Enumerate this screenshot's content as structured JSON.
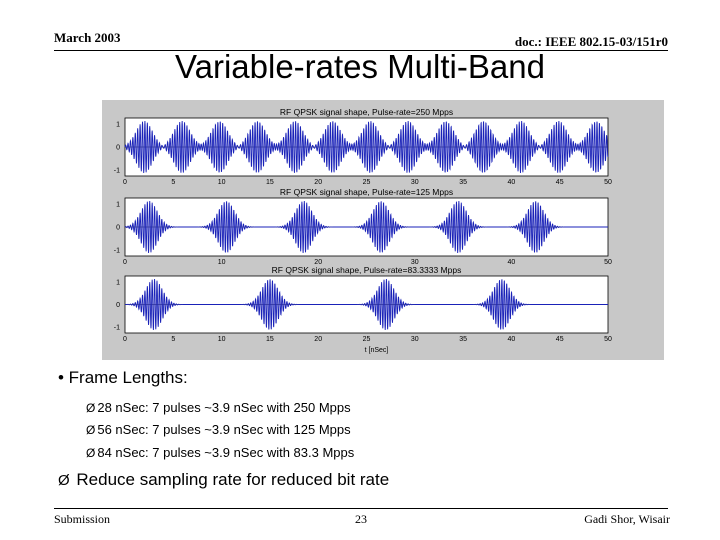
{
  "header": {
    "date": "March 2003",
    "doc_id": "doc.: IEEE 802.15-03/151r0"
  },
  "title": "Variable-rates Multi-Band",
  "figure": {
    "plots": [
      {
        "title": "RF QPSK signal shape, Pulse-rate=250 Mpps",
        "y_ticks": [
          "1",
          "0",
          "-1"
        ],
        "x_ticks": [
          "0",
          "5",
          "10",
          "15",
          "20",
          "25",
          "30",
          "35",
          "40",
          "45",
          "50"
        ],
        "pulse_centers_nsec": [
          2.0,
          5.9,
          9.8,
          13.7,
          17.6,
          21.5,
          25.4,
          29.3,
          33.2,
          37.1,
          41.0,
          44.9,
          48.8
        ]
      },
      {
        "title": "RF QPSK signal shape, Pulse-rate=125 Mpps",
        "y_ticks": [
          "1",
          "0",
          "-1"
        ],
        "x_ticks": [
          "0",
          "10",
          "20",
          "30",
          "40",
          "50"
        ],
        "pulse_centers_nsec": [
          2.5,
          10.5,
          18.5,
          26.5,
          34.5,
          42.5
        ]
      },
      {
        "title": "RF QPSK signal shape, Pulse-rate=83.3333 Mpps",
        "y_ticks": [
          "1",
          "0",
          "-1"
        ],
        "x_ticks": [
          "0",
          "5",
          "10",
          "15",
          "20",
          "25",
          "30",
          "35",
          "40",
          "45",
          "50"
        ],
        "pulse_centers_nsec": [
          3.0,
          15.0,
          27.0,
          39.0
        ],
        "xlabel": "t [nSec]"
      }
    ]
  },
  "bullets": {
    "main": "• Frame Lengths:",
    "subs": [
      "28 nSec: 7 pulses ~3.9 nSec with 250 Mpps",
      "56 nSec: 7 pulses ~3.9 nSec with 125 Mpps",
      "84 nSec: 7 pulses ~3.9 nSec with 83.3 Mpps"
    ],
    "reduce": "Reduce sampling rate for reduced bit rate",
    "arrow": "Ø"
  },
  "footer": {
    "left": "Submission",
    "page": "23",
    "author": "Gadi Shor, Wisair"
  }
}
